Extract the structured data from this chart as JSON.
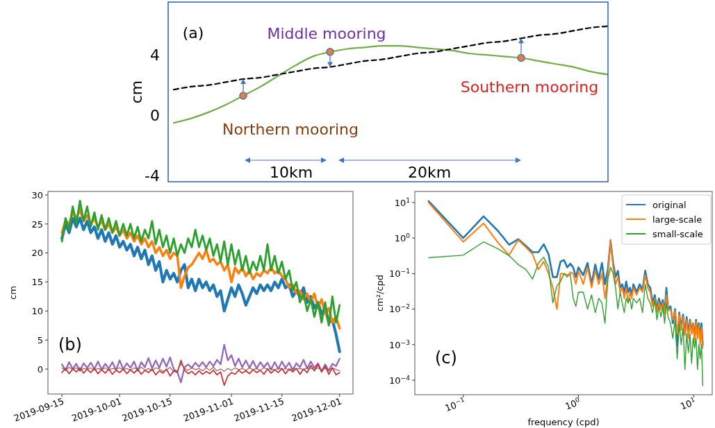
{
  "chart_data": [
    {
      "type": "line",
      "ylabel": "cm",
      "categories": [
        null,
        null,
        null,
        null,
        null,
        null,
        null,
        null,
        null,
        null,
        null,
        null,
        null,
        null,
        null,
        null,
        null,
        null,
        null,
        null,
        null,
        null,
        null,
        null,
        null,
        null
      ],
      "ylim": [
        -4.4,
        7.5
      ],
      "yticks": [
        -4,
        0,
        4
      ],
      "tick_labels": "y",
      "series": [
        {
          "color": "#70ad47",
          "values": [
            -0.5,
            -0.2,
            0.2,
            0.7,
            1.3,
            1.9,
            2.6,
            3.3,
            3.9,
            4.2,
            4.4,
            4.5,
            4.6,
            4.6,
            4.5,
            4.4,
            4.3,
            4.1,
            4.0,
            3.9,
            3.8,
            3.6,
            3.4,
            3.2,
            2.9,
            2.7
          ]
        },
        {
          "color": "#000000",
          "line_style": "dashed",
          "values": [
            1.7,
            1.9,
            2.0,
            2.2,
            2.4,
            2.5,
            2.7,
            2.9,
            3.1,
            3.2,
            3.4,
            3.6,
            3.7,
            3.9,
            4.1,
            4.2,
            4.4,
            4.6,
            4.8,
            4.9,
            5.1,
            5.3,
            5.4,
            5.6,
            5.8,
            5.9
          ]
        },
        {
          "type": "scatter",
          "marker": "circle",
          "color": "#ed7d31",
          "values": [
            null,
            null,
            null,
            null,
            1.3,
            null,
            null,
            null,
            null,
            4.2,
            null,
            null,
            null,
            null,
            null,
            null,
            null,
            null,
            null,
            null,
            3.8,
            null,
            null,
            null,
            null,
            null
          ]
        }
      ],
      "annotations": [
        "(a)",
        "Middle mooring",
        "Northern mooring",
        "Southern mooring",
        "10km",
        "20km"
      ]
    },
    {
      "type": "line",
      "ylabel": "cm",
      "x": [
        "2019-09-15",
        "2019-09-16",
        "2019-09-17",
        "2019-09-18",
        "2019-09-19",
        "2019-09-20",
        "2019-09-21",
        "2019-09-22",
        "2019-09-23",
        "2019-09-24",
        "2019-09-25",
        "2019-09-26",
        "2019-09-27",
        "2019-09-28",
        "2019-09-29",
        "2019-09-30",
        "2019-10-01",
        "2019-10-02",
        "2019-10-03",
        "2019-10-04",
        "2019-10-05",
        "2019-10-06",
        "2019-10-07",
        "2019-10-08",
        "2019-10-09",
        "2019-10-10",
        "2019-10-11",
        "2019-10-12",
        "2019-10-13",
        "2019-10-14",
        "2019-10-15",
        "2019-10-16",
        "2019-10-17",
        "2019-10-18",
        "2019-10-19",
        "2019-10-20",
        "2019-10-21",
        "2019-10-22",
        "2019-10-23",
        "2019-10-24",
        "2019-10-25",
        "2019-10-26",
        "2019-10-27",
        "2019-10-28",
        "2019-10-29",
        "2019-10-30",
        "2019-10-31",
        "2019-11-01",
        "2019-11-02",
        "2019-11-03",
        "2019-11-04",
        "2019-11-05",
        "2019-11-06",
        "2019-11-07",
        "2019-11-08",
        "2019-11-09",
        "2019-11-10",
        "2019-11-11",
        "2019-11-12",
        "2019-11-13",
        "2019-11-14",
        "2019-11-15",
        "2019-11-16",
        "2019-11-17",
        "2019-11-18",
        "2019-11-19",
        "2019-11-20",
        "2019-11-21",
        "2019-11-22",
        "2019-11-23",
        "2019-11-24",
        "2019-11-25",
        "2019-11-26",
        "2019-11-27",
        "2019-11-28",
        "2019-11-29",
        "2019-11-30",
        "2019-12-01"
      ],
      "xlim": [
        "2019-09-11T03:00",
        "2019-12-04T17:00"
      ],
      "ylim": [
        -4.3,
        30.6
      ],
      "xticks": [
        "2019-09-15",
        "2019-10-01",
        "2019-10-15",
        "2019-11-01",
        "2019-11-15",
        "2019-12-01"
      ],
      "yticks": [
        0,
        5,
        10,
        15,
        20,
        25,
        30
      ],
      "series": [
        {
          "color": "#1f77b4",
          "values": [
            22.5,
            25,
            23.5,
            26,
            24.5,
            26,
            24,
            25.5,
            23.5,
            24.5,
            22.5,
            24,
            22,
            23.5,
            21.5,
            23,
            21,
            22,
            20.5,
            21.5,
            19.5,
            21,
            19,
            20.5,
            18,
            19.5,
            17,
            18.5,
            15,
            17,
            15.5,
            16.5,
            15,
            17,
            18,
            14,
            15.5,
            13.5,
            15.5,
            14,
            15,
            13.5,
            14.5,
            12.5,
            13.5,
            10,
            12,
            14,
            12.5,
            14.5,
            13,
            11,
            12.5,
            14,
            13,
            14.5,
            13.5,
            14.5,
            13.5,
            15,
            14,
            15.5,
            14,
            14.5,
            12.5,
            13.5,
            12.5,
            14,
            11.5,
            12.5,
            10.5,
            11.5,
            9.5,
            10.5,
            8,
            8.5,
            6,
            3
          ]
        },
        {
          "color": "#ff7f0e",
          "values": [
            23.5,
            25.5,
            25,
            27,
            26,
            27.5,
            25.5,
            26.5,
            25,
            26,
            24.5,
            25.5,
            24,
            25,
            23.5,
            24.5,
            23,
            24,
            22.5,
            23.5,
            22,
            23,
            21.5,
            22.5,
            21,
            22,
            20,
            21,
            19.5,
            20.5,
            19,
            20,
            19.5,
            14,
            16,
            17.5,
            18,
            19,
            20,
            19,
            20.5,
            18.5,
            19,
            18,
            18.5,
            17,
            18,
            15,
            17.5,
            16.5,
            17.5,
            16,
            17,
            15.5,
            16.5,
            16,
            17,
            16.5,
            17.5,
            16.5,
            17,
            16,
            15.5,
            14,
            14.5,
            13,
            13.5,
            12,
            13,
            11.5,
            13,
            10.5,
            12,
            9.5,
            10.5,
            8,
            9,
            7
          ]
        },
        {
          "color": "#2ca02c",
          "values": [
            22,
            26,
            24,
            28,
            25,
            29,
            25.5,
            28,
            24.5,
            27,
            24,
            26.5,
            24,
            26,
            23.5,
            25.5,
            23,
            25,
            23,
            25,
            22.5,
            24.5,
            22,
            24,
            22.5,
            25.5,
            21.5,
            24,
            21,
            23,
            20,
            22.5,
            19.5,
            21.5,
            20,
            22.5,
            21,
            24,
            21,
            23,
            20.5,
            22.5,
            19.5,
            21.5,
            18.5,
            22,
            18,
            21.5,
            18,
            20.5,
            17,
            19.5,
            16.5,
            18.5,
            17,
            19.5,
            17,
            21.5,
            17,
            19.5,
            16.5,
            18.5,
            15.5,
            17,
            13.5,
            15,
            11.5,
            13,
            10,
            12,
            9,
            11.5,
            8,
            11.5,
            7.5,
            12.5,
            8,
            11
          ]
        },
        {
          "color": "#9467bd",
          "values": [
            0.8,
            -0.2,
            1.2,
            0,
            0.9,
            -0.3,
            1,
            0.2,
            1.1,
            0,
            1.3,
            -0.1,
            0.9,
            0.1,
            1.2,
            -0.2,
            1.5,
            0,
            1,
            0.2,
            1.3,
            -0.3,
            1.2,
            0.3,
            1.9,
            0.1,
            1.5,
            0.2,
            1.8,
            0.4,
            2,
            0,
            -0.5,
            -2.3,
            0.3,
            0.8,
            0.2,
            1.1,
            0.4,
            1.2,
            0.3,
            1.3,
            0.5,
            1.6,
            0.8,
            4.2,
            1.5,
            2.4,
            0.5,
            1.8,
            0.3,
            1.5,
            0.2,
            1.4,
            0.1,
            1.2,
            0.3,
            1.1,
            -0.1,
            1.2,
            0,
            1.3,
            0.2,
            1.1,
            -0.2,
            1,
            0.3,
            1.6,
            0.1,
            1.3,
            0.2,
            1,
            -0.4,
            0.8,
            -0.3,
            0.9,
            0.5,
            1.8
          ]
        },
        {
          "color": "#d62728",
          "values": [
            -0.6,
            0.1,
            -0.8,
            0,
            -0.5,
            0.2,
            -0.7,
            0,
            -0.6,
            0.1,
            -0.8,
            -0.1,
            -0.7,
            0,
            -0.9,
            -0.2,
            -0.6,
            0,
            -0.8,
            -0.1,
            -0.7,
            0,
            -0.9,
            -0.2,
            -0.6,
            0,
            -1,
            -0.3,
            -0.7,
            0,
            -1.2,
            -0.3,
            -0.6,
            1.5,
            -0.2,
            -0.8,
            -0.4,
            -1,
            -0.3,
            -0.9,
            -0.4,
            -0.8,
            -0.2,
            -1,
            -0.5,
            -2.8,
            -1.2,
            -0.6,
            -0.9,
            -0.2,
            -0.7,
            -0.3,
            -0.8,
            -0.1,
            -0.6,
            -0.2,
            -0.9,
            0,
            -0.7,
            -0.1,
            -0.6,
            0.1,
            -0.8,
            0,
            -0.5,
            0.1,
            -0.9,
            0,
            -0.6,
            0.6,
            -0.3,
            0.8,
            -0.5,
            0.5,
            -0.9,
            0.2,
            -1,
            -0.6
          ]
        },
        {
          "color": "#8c564b",
          "values": [
            0.2,
            -0.2,
            0.3,
            -0.1,
            0.2,
            -0.3,
            0.1,
            0,
            0.2,
            -0.2,
            0.1,
            -0.1,
            0.2,
            -0.2,
            0.1,
            0,
            0.2,
            -0.1,
            0.1,
            -0.2,
            0.2,
            -0.1,
            0.3,
            -0.2,
            0.1,
            -0.3,
            0.2,
            0,
            -0.4,
            -0.2,
            0.3,
            -0.5,
            -0.3,
            0.9,
            0.1,
            -0.2,
            0.2,
            -0.1,
            0.1,
            -0.3,
            0.2,
            -0.2,
            0.3,
            -0.3,
            0,
            -0.4,
            0.1,
            -0.2,
            0.2,
            -0.1,
            0.1,
            -0.2,
            0.2,
            -0.1,
            0.1,
            -0.2,
            0.2,
            0,
            0.1,
            -0.2,
            0.2,
            -0.1,
            0.1,
            -0.2,
            0.2,
            0,
            0.1,
            -0.1,
            0.2,
            0.1,
            -0.1,
            0.2,
            -0.2,
            0.1,
            -0.1,
            0.2,
            -0.1,
            -0.3
          ]
        }
      ],
      "annotations": [
        "(b)"
      ]
    },
    {
      "type": "line",
      "log": "xy",
      "xlabel": "frequency (cpd)",
      "ylabel": "cm²/cpd",
      "legend": "top right",
      "x": [
        0.05,
        0.1,
        0.15,
        0.2,
        0.25,
        0.3,
        0.35,
        0.4,
        0.45,
        0.5,
        0.55,
        0.6,
        0.65,
        0.7,
        0.75,
        0.8,
        0.85,
        0.9,
        0.95,
        1.0,
        1.1,
        1.2,
        1.3,
        1.4,
        1.5,
        1.6,
        1.7,
        1.8,
        1.9,
        2.0,
        2.1,
        2.2,
        2.3,
        2.4,
        2.5,
        2.6,
        2.7,
        2.8,
        2.9,
        3.0,
        3.2,
        3.4,
        3.6,
        3.8,
        4.0,
        4.2,
        4.4,
        4.6,
        4.8,
        5.0,
        5.2,
        5.4,
        5.6,
        5.8,
        6.0,
        6.3,
        6.6,
        6.9,
        7.2,
        7.5,
        7.8,
        8.1,
        8.4,
        8.7,
        9.0,
        9.3,
        9.6,
        9.9,
        10.2,
        10.5,
        10.8,
        11.1,
        11.4,
        11.7,
        12.0
      ],
      "xlim": [
        0.038,
        14.5
      ],
      "ylim": [
        3.9e-05,
        20.5
      ],
      "xticks": [
        {
          "value": 0.1,
          "label": "10$^{−1}$"
        },
        {
          "value": 1,
          "label": "10$^{0}$"
        },
        {
          "value": 10,
          "label": "10$^{1}$"
        }
      ],
      "yticks": [
        {
          "value": 0.0001,
          "label": "10$^{−4}$"
        },
        {
          "value": 0.001,
          "label": "10$^{−3}$"
        },
        {
          "value": 0.01,
          "label": "10$^{−2}$"
        },
        {
          "value": 0.1,
          "label": "10$^{−1}$"
        },
        {
          "value": 1,
          "label": "10$^{0}$"
        },
        {
          "value": 10,
          "label": "10$^{1}$"
        }
      ],
      "series": [
        {
          "name": "original",
          "color": "#1f77b4",
          "values": [
            11,
            1.0,
            4.1,
            1.6,
            0.65,
            0.93,
            0.6,
            0.4,
            0.4,
            0.67,
            0.35,
            0.08,
            0.08,
            0.22,
            0.24,
            0.15,
            0.19,
            0.15,
            0.08,
            0.15,
            0.09,
            0.2,
            0.05,
            0.18,
            0.07,
            0.2,
            0.05,
            0.13,
            0.85,
            0.2,
            0.08,
            0.12,
            0.04,
            0.05,
            0.03,
            0.06,
            0.03,
            0.04,
            0.025,
            0.05,
            0.03,
            0.05,
            0.035,
            0.12,
            0.05,
            0.04,
            0.015,
            0.025,
            0.01,
            0.02,
            0.012,
            0.018,
            0.008,
            0.04,
            0.01,
            0.012,
            0.004,
            0.01,
            0.0009,
            0.008,
            0.003,
            0.007,
            0.002,
            0.006,
            0.002,
            0.005,
            0.0025,
            0.004,
            0.0015,
            0.005,
            0.002,
            0.004,
            0.0015,
            0.004,
            0.001
          ]
        },
        {
          "name": "large-scale",
          "color": "#ff7f0e",
          "values": [
            10,
            0.78,
            2.6,
            0.75,
            0.33,
            0.88,
            0.55,
            0.35,
            0.13,
            0.22,
            0.1,
            0.04,
            0.01,
            0.1,
            0.1,
            0.08,
            0.11,
            0.1,
            0.05,
            0.12,
            0.05,
            0.15,
            0.04,
            0.12,
            0.05,
            0.1,
            0.02,
            0.08,
            0.9,
            0.15,
            0.05,
            0.08,
            0.03,
            0.04,
            0.02,
            0.04,
            0.015,
            0.03,
            0.02,
            0.04,
            0.025,
            0.04,
            0.03,
            0.09,
            0.04,
            0.03,
            0.012,
            0.02,
            0.008,
            0.016,
            0.01,
            0.015,
            0.007,
            0.025,
            0.009,
            0.01,
            0.005,
            0.009,
            0.002,
            0.007,
            0.0025,
            0.006,
            0.0018,
            0.005,
            0.0015,
            0.0045,
            0.002,
            0.004,
            0.0012,
            0.0045,
            0.0015,
            0.0035,
            0.001,
            0.003,
            0.0008
          ]
        },
        {
          "name": "small-scale",
          "color": "#2ca02c",
          "values": [
            0.28,
            0.33,
            0.78,
            0.5,
            0.32,
            0.18,
            0.13,
            0.07,
            0.2,
            0.29,
            0.15,
            0.015,
            0.045,
            0.06,
            0.1,
            0.09,
            0.095,
            0.02,
            0.012,
            0.03,
            0.03,
            0.01,
            0.025,
            0.008,
            0.02,
            0.015,
            0.004,
            0.07,
            0.15,
            0.1,
            0.04,
            0.01,
            0.03,
            0.015,
            0.008,
            0.02,
            0.015,
            0.02,
            0.01,
            0.02,
            0.015,
            0.02,
            0.008,
            0.05,
            0.02,
            0.015,
            0.008,
            0.018,
            0.005,
            0.012,
            0.006,
            0.012,
            0.004,
            0.015,
            0.006,
            0.004,
            0.0015,
            0.005,
            0.0004,
            0.004,
            0.001,
            0.003,
            0.0002,
            0.002,
            0.0006,
            0.002,
            0.0003,
            0.0015,
            0.0008,
            0.0015,
            0.0002,
            0.001,
            0.0004,
            0.001,
            7e-05
          ]
        }
      ],
      "annotations": [
        "(c)"
      ]
    }
  ]
}
